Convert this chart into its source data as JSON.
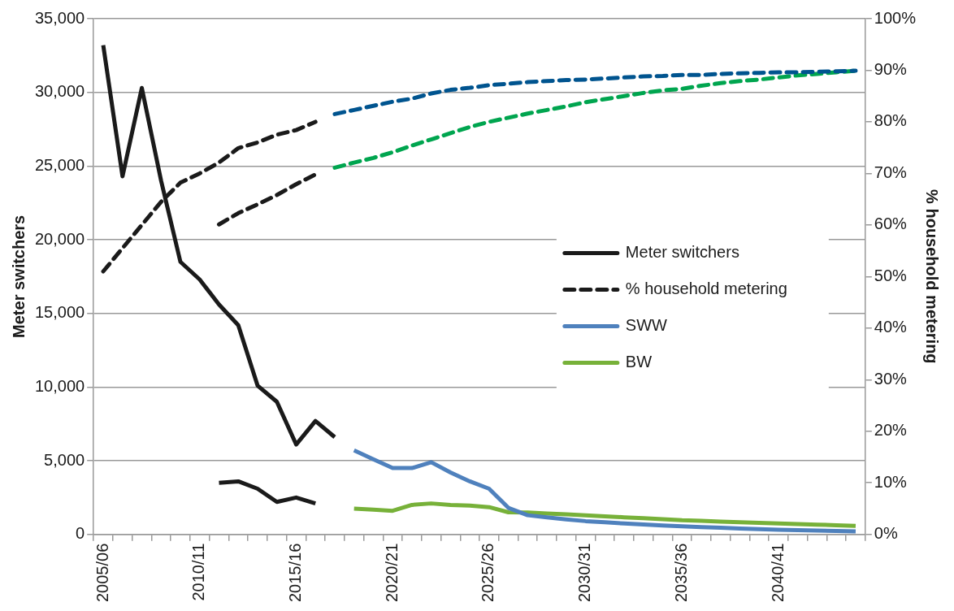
{
  "chart_data": {
    "type": "line",
    "ylabel": "Meter switchers",
    "y2label": "% household metering",
    "categories": [
      "2005/06",
      null,
      null,
      null,
      null,
      "2010/11",
      null,
      null,
      null,
      null,
      "2015/16",
      null,
      null,
      null,
      null,
      "2020/21",
      null,
      null,
      null,
      null,
      "2025/26",
      null,
      null,
      null,
      null,
      "2030/31",
      null,
      null,
      null,
      null,
      "2035/36",
      null,
      null,
      null,
      null,
      "2040/41",
      null,
      null,
      null,
      null
    ],
    "ylim": [
      0,
      35000
    ],
    "yticks": [
      0,
      {
        "value": 5000,
        "label": "5,000"
      },
      {
        "value": 10000,
        "label": "10,000"
      },
      {
        "value": 15000,
        "label": "15,000"
      },
      {
        "value": 20000,
        "label": "20,000"
      },
      {
        "value": 25000,
        "label": "25,000"
      },
      {
        "value": 30000,
        "label": "30,000"
      },
      {
        "value": 35000,
        "label": "35,000"
      }
    ],
    "y2lim": [
      0,
      100
    ],
    "y2ticks": [
      {
        "value": 0,
        "label": "0%"
      },
      {
        "value": 10,
        "label": "10%"
      },
      {
        "value": 20,
        "label": "20%"
      },
      {
        "value": 30,
        "label": "30%"
      },
      {
        "value": 40,
        "label": "40%"
      },
      {
        "value": 50,
        "label": "50%"
      },
      {
        "value": 60,
        "label": "60%"
      },
      {
        "value": 70,
        "label": "70%"
      },
      {
        "value": 80,
        "label": "80%"
      },
      {
        "value": 90,
        "label": "90%"
      },
      {
        "value": 100,
        "label": "100%"
      }
    ],
    "grid": "y",
    "legend": "right",
    "marker": "none",
    "series": [
      {
        "name": "Meter switchers",
        "color": "#1a1a1a",
        "line_style": "solid",
        "values": [
          33200,
          24300,
          30300,
          24000,
          18500,
          17300,
          15600,
          14200,
          10100,
          9000,
          6100,
          7700,
          6600,
          null,
          null,
          null,
          null,
          null,
          null,
          null,
          null,
          null,
          null,
          null,
          null,
          null,
          null,
          null,
          null,
          null,
          null,
          null,
          null,
          null,
          null,
          null,
          null,
          null,
          null,
          null
        ]
      },
      {
        "color": "#1a1a1a",
        "line_style": "solid",
        "values": [
          null,
          null,
          null,
          null,
          null,
          null,
          3500,
          3600,
          3100,
          2200,
          2500,
          2100,
          null,
          null,
          null,
          null,
          null,
          null,
          null,
          null,
          null,
          null,
          null,
          null,
          null,
          null,
          null,
          null,
          null,
          null,
          null,
          null,
          null,
          null,
          null,
          null,
          null,
          null,
          null,
          null
        ]
      },
      {
        "name": "% household metering",
        "color": "#1a1a1a",
        "line_style": "dashed",
        "axis": "y2",
        "values": [
          51.0,
          55.5,
          60.0,
          64.5,
          68.2,
          70.0,
          72.1,
          74.9,
          76.0,
          77.5,
          78.4,
          80.0,
          null,
          null,
          null,
          null,
          null,
          null,
          null,
          null,
          null,
          null,
          null,
          null,
          null,
          null,
          null,
          null,
          null,
          null,
          null,
          null,
          null,
          null,
          null,
          null,
          null,
          null,
          null,
          null
        ]
      },
      {
        "color": "#1a1a1a",
        "line_style": "dashed",
        "axis": "y2",
        "values": [
          null,
          null,
          null,
          null,
          null,
          null,
          60.1,
          62.3,
          64.0,
          65.8,
          67.9,
          69.8,
          null,
          null,
          null,
          null,
          null,
          null,
          null,
          null,
          null,
          null,
          null,
          null,
          null,
          null,
          null,
          null,
          null,
          null,
          null,
          null,
          null,
          null,
          null,
          null,
          null,
          null,
          null,
          null
        ]
      },
      {
        "name": "SWW",
        "color": "#4f81bd",
        "line_style": "solid",
        "values": [
          null,
          null,
          null,
          null,
          null,
          null,
          null,
          null,
          null,
          null,
          null,
          null,
          null,
          5700,
          5100,
          4500,
          4500,
          4900,
          4200,
          3600,
          3100,
          1800,
          1300,
          1150,
          1020,
          900,
          820,
          740,
          670,
          610,
          550,
          500,
          450,
          400,
          360,
          320,
          290,
          260,
          230,
          200
        ]
      },
      {
        "name": "BW",
        "color": "#77b139",
        "line_style": "solid",
        "values": [
          null,
          null,
          null,
          null,
          null,
          null,
          null,
          null,
          null,
          null,
          null,
          null,
          null,
          1750,
          1680,
          1600,
          2000,
          2100,
          2000,
          1950,
          1850,
          1500,
          1480,
          1420,
          1360,
          1300,
          1230,
          1160,
          1100,
          1030,
          960,
          920,
          870,
          830,
          790,
          740,
          700,
          660,
          620,
          570
        ]
      },
      {
        "color": "#00548f",
        "line_style": "dashed",
        "axis": "y2",
        "values": [
          null,
          null,
          null,
          null,
          null,
          null,
          null,
          null,
          null,
          null,
          null,
          null,
          81.5,
          82.3,
          83.1,
          83.9,
          84.5,
          85.5,
          86.2,
          86.6,
          87.1,
          87.4,
          87.7,
          87.9,
          88.1,
          88.2,
          88.4,
          88.6,
          88.8,
          88.9,
          89.1,
          89.1,
          89.3,
          89.4,
          89.5,
          89.6,
          89.6,
          89.7,
          89.8,
          89.9
        ]
      },
      {
        "color": "#00a54f",
        "line_style": "dashed",
        "axis": "y2",
        "values": [
          null,
          null,
          null,
          null,
          null,
          null,
          null,
          null,
          null,
          null,
          null,
          null,
          71.1,
          72.1,
          73.0,
          74.1,
          75.4,
          76.6,
          77.8,
          79.0,
          80.0,
          80.8,
          81.6,
          82.3,
          83.0,
          83.8,
          84.4,
          85.0,
          85.6,
          86.1,
          86.4,
          87.0,
          87.5,
          87.9,
          88.2,
          88.6,
          89.0,
          89.3,
          89.6,
          89.9
        ]
      }
    ]
  }
}
